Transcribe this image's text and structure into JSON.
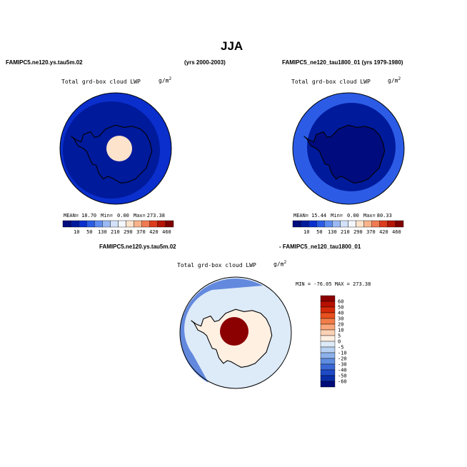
{
  "figure": {
    "title": "JJA",
    "top_left_case": "FAMIPC5.ne120.ys.tau5m.02",
    "top_left_years": "(yrs 2000-2003)",
    "top_right_case": "FAMIPC5_ne120_tau1800_01 (yrs 1979-1980)",
    "bottom_case_a": "FAMIPC5.ne120.ys.tau5m.02",
    "bottom_case_b": "- FAMIPC5_ne120_tau1800_01"
  },
  "chart_data": [
    {
      "type": "heatmap",
      "projection": "south-polar-stereographic",
      "variable": "Total grd-box cloud LWP",
      "units": "g/m",
      "units_exp": "2",
      "stats": {
        "mean_label": "MEAN=",
        "mean": "18.70",
        "min_label": "Min=",
        "min": "0.00",
        "max_label": "Max=",
        "max": "273.38"
      },
      "colorbar": {
        "levels": [
          "10",
          "50",
          "130",
          "210",
          "290",
          "370",
          "420",
          "460"
        ],
        "colors": [
          "#000c7d",
          "#001a9c",
          "#0a2fcc",
          "#2c5ce6",
          "#5e8cf0",
          "#9ab9f5",
          "#d3e2fa",
          "#f4f7fd",
          "#fde3cc",
          "#f8b38a",
          "#f07a52",
          "#dc3c1e",
          "#b51505",
          "#7f0000"
        ]
      },
      "regions": [
        {
          "name": "ocean",
          "color": "#001a9c"
        },
        {
          "name": "outer-ring",
          "color": "#0a2fcc"
        },
        {
          "name": "polar-cap",
          "color": "#fde3cc"
        }
      ]
    },
    {
      "type": "heatmap",
      "projection": "south-polar-stereographic",
      "variable": "Total grd-box cloud LWP",
      "units": "g/m",
      "units_exp": "2",
      "stats": {
        "mean_label": "MEAN=",
        "mean": "15.44",
        "min_label": "Min=",
        "min": "0.00",
        "max_label": "Max=",
        "max": "80.33"
      },
      "colorbar": {
        "levels": [
          "10",
          "50",
          "130",
          "210",
          "290",
          "370",
          "420",
          "460"
        ],
        "colors": [
          "#000c7d",
          "#001a9c",
          "#0a2fcc",
          "#2c5ce6",
          "#5e8cf0",
          "#9ab9f5",
          "#d3e2fa",
          "#f4f7fd",
          "#fde3cc",
          "#f8b38a",
          "#f07a52",
          "#dc3c1e",
          "#b51505",
          "#7f0000"
        ]
      },
      "regions": [
        {
          "name": "continent",
          "color": "#000c7d"
        },
        {
          "name": "ocean",
          "color": "#001a9c"
        },
        {
          "name": "outer-ring",
          "color": "#2c5ce6"
        }
      ]
    },
    {
      "type": "heatmap",
      "projection": "south-polar-stereographic",
      "variable": "Total grd-box cloud LWP",
      "units": "g/m",
      "units_exp": "2",
      "stats_line": "MIN = -76.05 MAX = 273.38",
      "colorbar": {
        "levels": [
          "60",
          "50",
          "40",
          "30",
          "20",
          "10",
          "5",
          "0",
          "-5",
          "-10",
          "-20",
          "-30",
          "-40",
          "-50",
          "-60"
        ],
        "colors": [
          "#8b0000",
          "#b81000",
          "#d42a0a",
          "#e8501e",
          "#f27c48",
          "#f8a67a",
          "#fcd2b6",
          "#fff0e2",
          "#ddeaf8",
          "#b8d0f2",
          "#8cb0ea",
          "#5e8ce0",
          "#3a68d6",
          "#1e4ac8",
          "#0a2ea8",
          "#000c78"
        ]
      },
      "regions": [
        {
          "name": "near-zero",
          "color": "#ddeaf8"
        },
        {
          "name": "continent-positive",
          "color": "#fff0e2"
        },
        {
          "name": "pole-maximum",
          "color": "#8b0000"
        },
        {
          "name": "negative-ring",
          "color": "#3a68d6"
        }
      ]
    }
  ]
}
